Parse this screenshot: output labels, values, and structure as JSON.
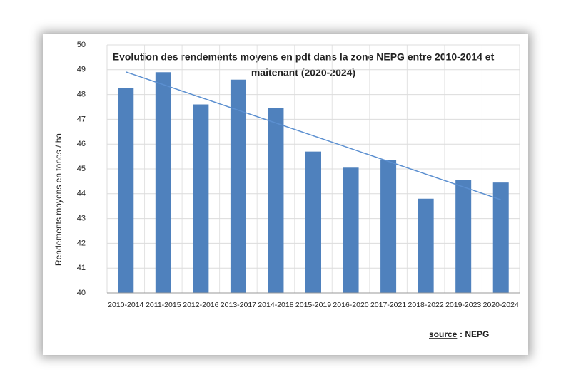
{
  "chart_data": {
    "type": "bar",
    "title": [
      "Evolution des rendements moyens en pdt dans la zone NEPG entre 2010-2014 et",
      "maitenant (2020-2024)"
    ],
    "y_label": "Rendements moyens en tones / ha",
    "categories": [
      "2010-2014",
      "2011-2015",
      "2012-2016",
      "2013-2017",
      "2014-2018",
      "2015-2019",
      "2016-2020",
      "2017-2021",
      "2018-2022",
      "2019-2023",
      "2020-2024"
    ],
    "values": [
      48.25,
      48.9,
      47.6,
      48.6,
      47.45,
      45.7,
      45.05,
      45.35,
      43.8,
      44.55,
      44.45
    ],
    "color": "#4f81bd",
    "trendline": true,
    "trend_color": "#5b8fd0",
    "ylim": [
      40,
      50
    ],
    "yticks": [
      40,
      41,
      42,
      43,
      44,
      45,
      46,
      47,
      48,
      49,
      50
    ],
    "grid": true,
    "source_label": "source",
    "source": ": NEPG"
  }
}
